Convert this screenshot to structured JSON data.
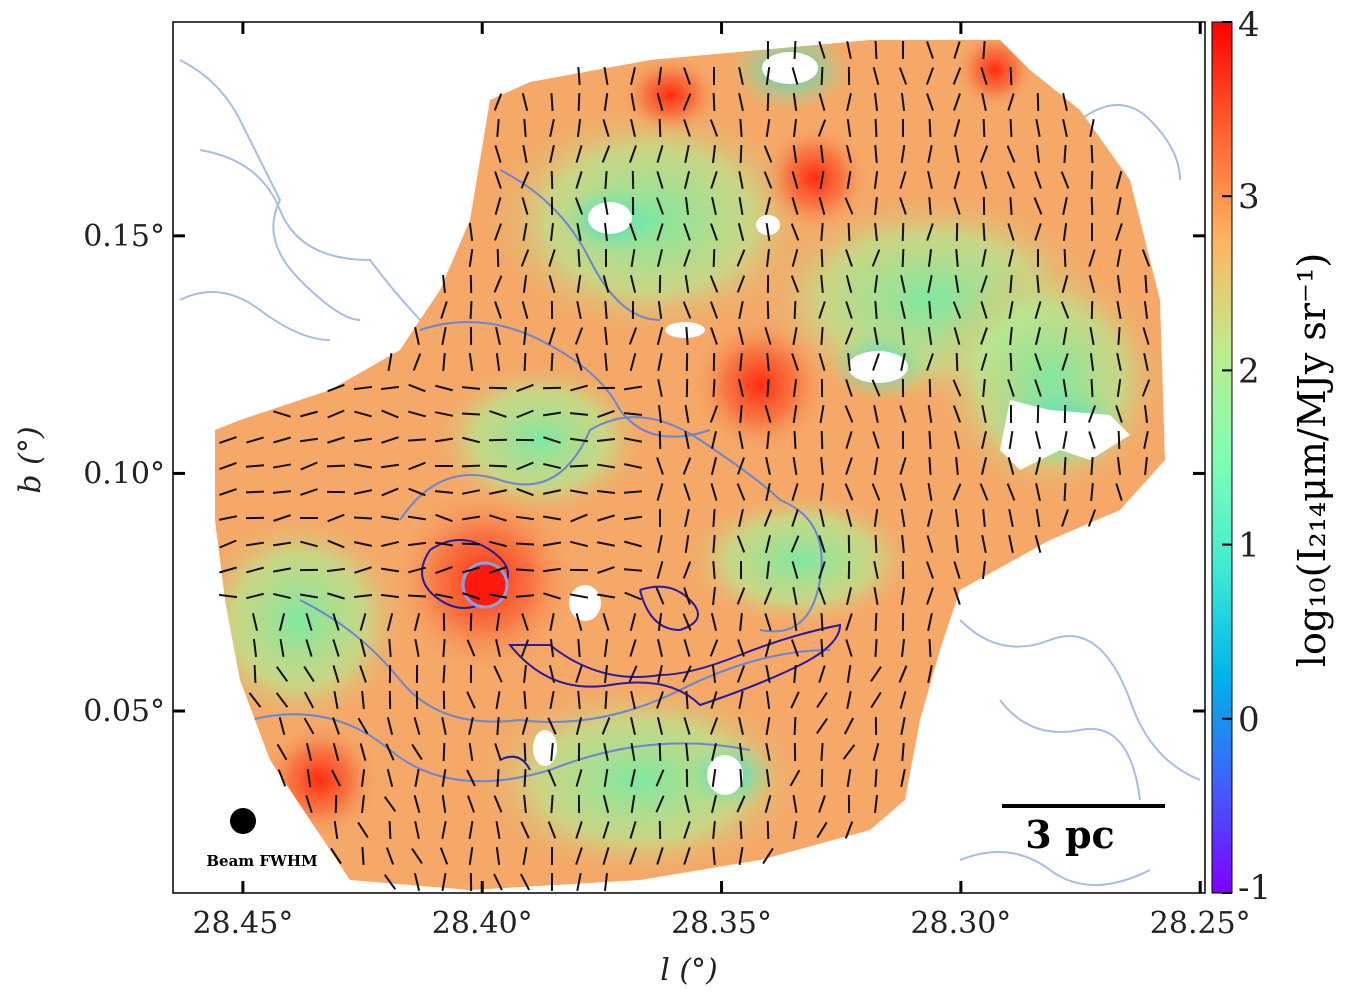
{
  "chart_data": {
    "type": "image",
    "xlabel": "l (°)",
    "ylabel": "b (°)",
    "xlim": [
      28.4646,
      28.249
    ],
    "ylim": [
      0.0117,
      0.195
    ],
    "xticks": [
      {
        "value": 28.45,
        "label": "28.45°"
      },
      {
        "value": 28.4,
        "label": "28.40°"
      },
      {
        "value": 28.35,
        "label": "28.35°"
      },
      {
        "value": 28.3,
        "label": "28.30°"
      },
      {
        "value": 28.25,
        "label": "28.25°"
      }
    ],
    "yticks": [
      {
        "value": 0.05,
        "label": "0.05°"
      },
      {
        "value": 0.1,
        "label": "0.10°"
      },
      {
        "value": 0.15,
        "label": "0.15°"
      }
    ],
    "colorbar": {
      "label": "log₁₀(I₂₁₄μm/MJy sr⁻¹)",
      "lim": [
        -1,
        4
      ],
      "ticks": [
        -1,
        0,
        1,
        2,
        3,
        4
      ],
      "colormap": "rainbow"
    },
    "annotations": [
      "3 pc",
      "Beam FWHM"
    ]
  }
}
